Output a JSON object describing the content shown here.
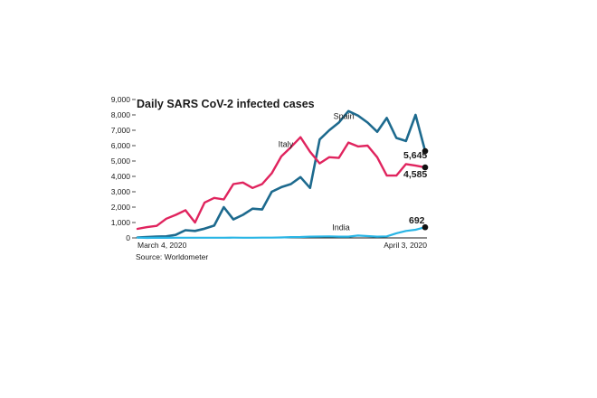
{
  "chart_data": {
    "type": "line",
    "title": "Daily SARS CoV-2 infected cases",
    "x_start_label": "March 4, 2020",
    "x_end_label": "April 3, 2020",
    "source": "Source: Worldometer",
    "ylim": [
      0,
      9000
    ],
    "yticks": [
      0,
      1000,
      2000,
      3000,
      4000,
      5000,
      6000,
      7000,
      8000,
      9000
    ],
    "ytick_labels": [
      "0",
      "1,000",
      "2,000",
      "3,000",
      "4,000",
      "5,000",
      "6,000",
      "7,000",
      "8,000",
      "9,000"
    ],
    "x": [
      "March 4, 2020",
      "March 5, 2020",
      "March 6, 2020",
      "March 7, 2020",
      "March 8, 2020",
      "March 9, 2020",
      "March 10, 2020",
      "March 11, 2020",
      "March 12, 2020",
      "March 13, 2020",
      "March 14, 2020",
      "March 15, 2020",
      "March 16, 2020",
      "March 17, 2020",
      "March 18, 2020",
      "March 19, 2020",
      "March 20, 2020",
      "March 21, 2020",
      "March 22, 2020",
      "March 23, 2020",
      "March 24, 2020",
      "March 25, 2020",
      "March 26, 2020",
      "March 27, 2020",
      "March 28, 2020",
      "March 29, 2020",
      "March 30, 2020",
      "March 31, 2020",
      "April 1, 2020",
      "April 2, 2020",
      "April 3, 2020"
    ],
    "series": [
      {
        "name": "Spain",
        "color": "#1d6a8e",
        "end_label": "5,645",
        "values": [
          30,
          60,
          80,
          100,
          200,
          500,
          450,
          600,
          800,
          2000,
          1200,
          1500,
          1900,
          1850,
          3000,
          3300,
          3500,
          3950,
          3250,
          6400,
          7000,
          7500,
          8250,
          7950,
          7500,
          6900,
          7800,
          6500,
          6300,
          8000,
          5645
        ]
      },
      {
        "name": "Italy",
        "color": "#e0245e",
        "end_label": "4,585",
        "values": [
          590,
          700,
          780,
          1250,
          1500,
          1800,
          1000,
          2300,
          2600,
          2500,
          3500,
          3600,
          3250,
          3500,
          4200,
          5300,
          5900,
          6550,
          5600,
          4850,
          5250,
          5200,
          6200,
          5950,
          6000,
          5250,
          4050,
          4050,
          4800,
          4700,
          4585
        ]
      },
      {
        "name": "India",
        "color": "#29b5e5",
        "end_label": "692",
        "values": [
          20,
          0,
          10,
          5,
          10,
          10,
          10,
          10,
          10,
          10,
          20,
          10,
          10,
          20,
          20,
          30,
          50,
          60,
          80,
          90,
          100,
          80,
          80,
          150,
          120,
          80,
          100,
          300,
          450,
          530,
          692
        ]
      }
    ]
  }
}
